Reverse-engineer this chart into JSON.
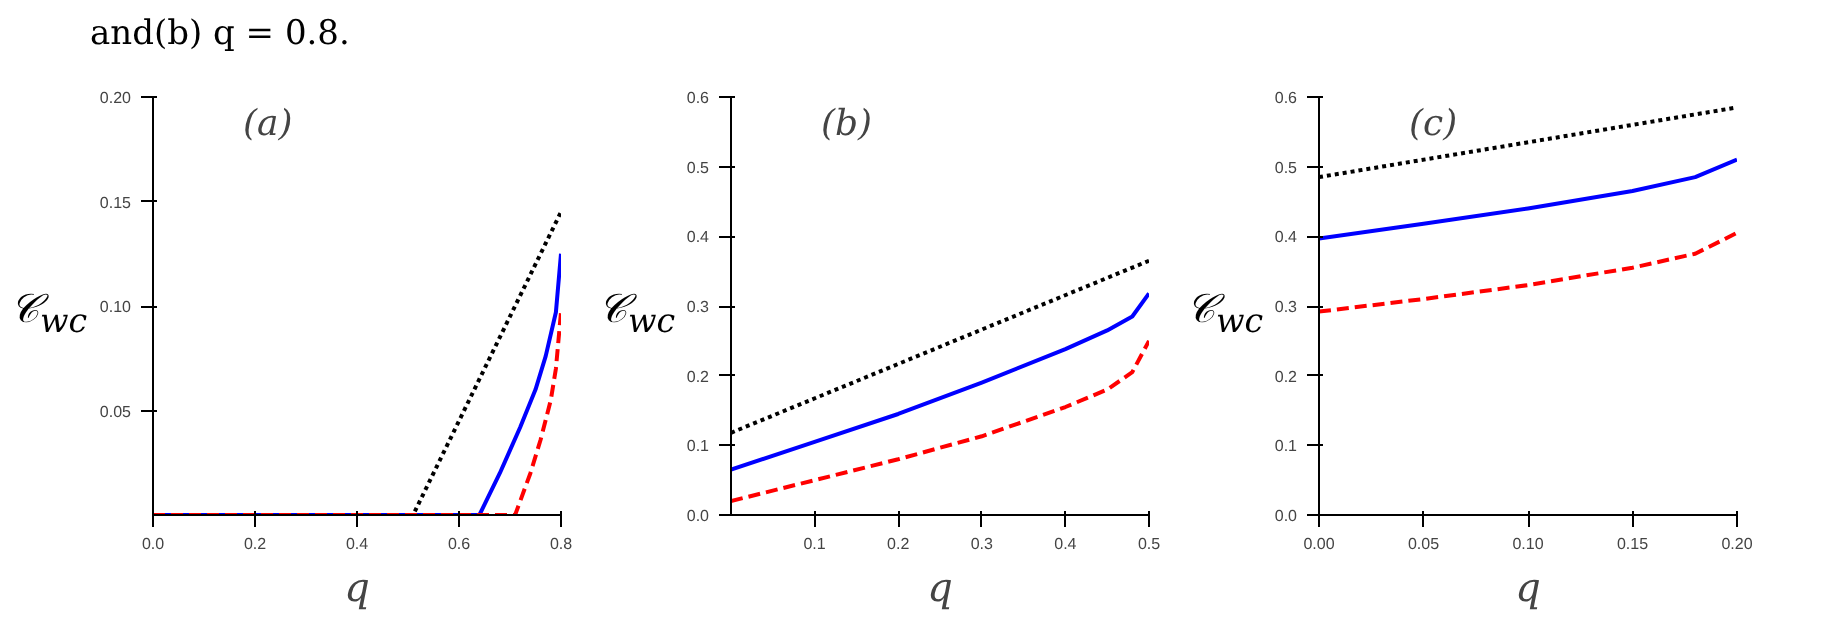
{
  "chart_data": [
    {
      "type": "line",
      "title": "(a)",
      "annotations": [
        "and(b) q = 0.8."
      ],
      "xlabel": "q",
      "ylabel": "𝒞$_{wc}$",
      "xlim": [
        0,
        0.8
      ],
      "ylim": [
        0,
        0.2
      ],
      "xticks": [
        {
          "value": 0,
          "label": "0.0"
        },
        0.2,
        0.4,
        0.6,
        0.8
      ],
      "yticks": [
        0.05,
        {
          "value": 0.1,
          "label": "0.10"
        },
        0.15,
        {
          "value": 0.2,
          "label": "0.20"
        }
      ],
      "grid": false,
      "series": [
        {
          "color": "#000000",
          "line_style": "dotted",
          "x": [
            0,
            0.51,
            0.8
          ],
          "values": [
            0,
            0,
            0.145
          ]
        },
        {
          "color": "#0000ff",
          "line_style": "solid",
          "x": [
            0,
            0.64,
            0.68,
            0.72,
            0.75,
            0.77,
            0.79,
            0.8
          ],
          "values": [
            0,
            0,
            0.02,
            0.042,
            0.06,
            0.076,
            0.097,
            0.125
          ]
        },
        {
          "color": "#ff0000",
          "line_style": "dashed",
          "x": [
            0,
            0.71,
            0.74,
            0.76,
            0.78,
            0.79,
            0.8
          ],
          "values": [
            0,
            0,
            0.02,
            0.036,
            0.055,
            0.07,
            0.097
          ]
        }
      ]
    },
    {
      "type": "line",
      "title": "(b)",
      "xlabel": "q",
      "ylabel": "𝒞$_{wc}$",
      "xlim": [
        0,
        0.5
      ],
      "ylim": [
        0,
        0.6
      ],
      "xticks": [
        0.1,
        0.2,
        0.3,
        0.4,
        0.5
      ],
      "yticks": [
        {
          "value": 0,
          "label": "0.0"
        },
        0.1,
        0.2,
        0.3,
        0.4,
        0.5,
        0.6
      ],
      "grid": false,
      "series": [
        {
          "color": "#000000",
          "line_style": "dotted",
          "x": [
            0,
            0.5
          ],
          "values": [
            0.118,
            0.365
          ]
        },
        {
          "color": "#0000ff",
          "line_style": "solid",
          "x": [
            0,
            0.1,
            0.2,
            0.3,
            0.4,
            0.45,
            0.48,
            0.5
          ],
          "values": [
            0.065,
            0.105,
            0.145,
            0.19,
            0.238,
            0.265,
            0.285,
            0.318
          ]
        },
        {
          "color": "#ff0000",
          "line_style": "dashed",
          "x": [
            0,
            0.1,
            0.2,
            0.3,
            0.4,
            0.45,
            0.48,
            0.5
          ],
          "values": [
            0.02,
            0.05,
            0.08,
            0.113,
            0.155,
            0.18,
            0.205,
            0.25
          ]
        }
      ]
    },
    {
      "type": "line",
      "title": "(c)",
      "xlabel": "q",
      "ylabel": "𝒞$_{wc}$",
      "xlim": [
        0,
        0.2
      ],
      "ylim": [
        0,
        0.6
      ],
      "xticks": [
        {
          "value": 0,
          "label": "0.00"
        },
        0.05,
        {
          "value": 0.1,
          "label": "0.10"
        },
        0.15,
        {
          "value": 0.2,
          "label": "0.20"
        }
      ],
      "yticks": [
        {
          "value": 0,
          "label": "0.0"
        },
        0.1,
        0.2,
        0.3,
        0.4,
        0.5,
        0.6
      ],
      "grid": false,
      "series": [
        {
          "color": "#000000",
          "line_style": "dotted",
          "x": [
            0,
            0.2
          ],
          "values": [
            0.485,
            0.585
          ]
        },
        {
          "color": "#0000ff",
          "line_style": "solid",
          "x": [
            0,
            0.05,
            0.1,
            0.15,
            0.18,
            0.2
          ],
          "values": [
            0.397,
            0.418,
            0.44,
            0.465,
            0.485,
            0.51
          ]
        },
        {
          "color": "#ff0000",
          "line_style": "dashed",
          "x": [
            0,
            0.05,
            0.1,
            0.15,
            0.18,
            0.2
          ],
          "values": [
            0.292,
            0.31,
            0.33,
            0.355,
            0.375,
            0.405
          ]
        }
      ]
    }
  ]
}
